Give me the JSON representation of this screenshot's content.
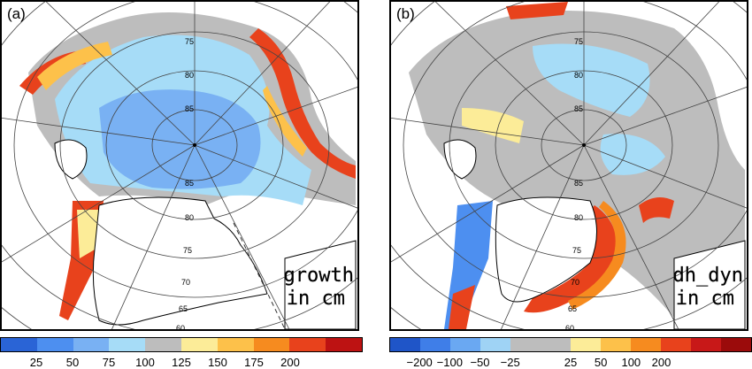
{
  "panels": [
    {
      "label": "(a)",
      "caption_line1": "growth",
      "caption_line2": "in cm",
      "colorbar_colors": [
        "#2a64d6",
        "#4d8ff0",
        "#79b1f3",
        "#a6dcf7",
        "#bdbdbd",
        "#fcec98",
        "#fdc14a",
        "#f68b1f",
        "#e8421c",
        "#bd1212"
      ],
      "colorbar_ticks": [
        "25",
        "50",
        "75",
        "100",
        "125",
        "150",
        "175",
        "200"
      ],
      "colorbar_tick_positions": [
        1,
        2,
        3,
        4,
        5,
        6,
        7,
        8
      ]
    },
    {
      "label": "(b)",
      "caption_line1": "dh_dyn",
      "caption_line2": "in cm",
      "colorbar_colors": [
        "#1f55c8",
        "#3f7ee8",
        "#6aa8f2",
        "#9fd3f5",
        "#bdbdbd",
        "#bdbdbd",
        "#fcec98",
        "#fdc14a",
        "#f68b1f",
        "#e8421c",
        "#c81818",
        "#9b0b0b"
      ],
      "colorbar_ticks": [
        "−200",
        "−100",
        "−50",
        "−25",
        "25",
        "50",
        "100",
        "200"
      ],
      "colorbar_tick_positions": [
        1,
        2,
        3,
        4,
        6,
        7,
        8,
        9
      ]
    }
  ],
  "lat_labels": [
    "60",
    "65",
    "70",
    "75",
    "80",
    "85"
  ],
  "map_colors": {
    "land": "#ffffff",
    "grid": "#444444",
    "coast": "#000000",
    "gray": "#bdbdbd",
    "light_blue": "#a6dcf7",
    "mid_blue": "#79b1f3",
    "blue": "#4d8ff0",
    "yellow": "#fcec98",
    "orange": "#f68b1f",
    "red": "#e8421c"
  }
}
